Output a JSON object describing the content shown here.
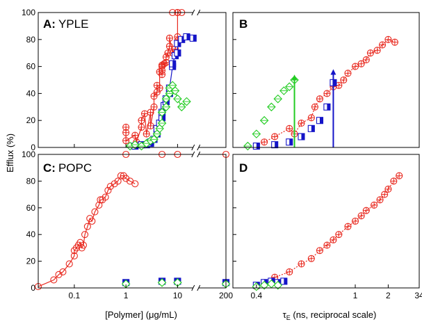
{
  "figure": {
    "y_axis_title": "Efflux (%)",
    "x_axis_title_left": "[Polymer] (μg/mL)",
    "x_axis_title_right_main": "τ",
    "x_axis_title_right_sub": "E",
    "x_axis_title_right_rest": " (ns, reciprocal scale)"
  },
  "panels": {
    "A": {
      "letter": "A:",
      "name": "YPLE"
    },
    "B": {
      "letter": "B",
      "name": ""
    },
    "C": {
      "letter": "C:",
      "name": "POPC"
    },
    "D": {
      "letter": "D",
      "name": ""
    }
  },
  "colors": {
    "red": "#e8281e",
    "blue": "#1414c8",
    "green": "#22cc22",
    "axis": "#000000"
  },
  "chart_data": [
    {
      "panel": "A",
      "type": "scatter",
      "xscale": "log",
      "xlim": [
        0.02,
        200
      ],
      "ylim": [
        0,
        100
      ],
      "xticks": [
        0.1,
        1,
        10,
        200
      ],
      "yticks": [
        0,
        20,
        40,
        60,
        80,
        100
      ],
      "axis_break_x": 20,
      "series": [
        {
          "color": "red",
          "marker": "circle-cross",
          "fit": "sigmoid",
          "x": [
            1,
            1,
            1,
            1.5,
            1.6,
            2,
            2,
            2.3,
            2.5,
            3,
            3,
            3.5,
            3.5,
            4,
            4,
            4.5,
            4.5,
            5,
            5,
            5,
            5,
            5.5,
            6,
            6,
            6.5,
            7,
            7,
            8,
            9,
            10,
            10,
            10
          ],
          "y": [
            11,
            15,
            5,
            9,
            4,
            15,
            20,
            25,
            10,
            26,
            16,
            30,
            38,
            41,
            46,
            44,
            56,
            54,
            57,
            60,
            61,
            62,
            63,
            67,
            70,
            75,
            81,
            70,
            73,
            79,
            82,
            100
          ]
        },
        {
          "color": "blue",
          "marker": "square-half",
          "fit": "sigmoid",
          "x": [
            1.5,
            2,
            2.5,
            3,
            3,
            3.5,
            4,
            4,
            4.5,
            5,
            5,
            5.5,
            6,
            6,
            7,
            7,
            8,
            8,
            9,
            10,
            10,
            12,
            15,
            20
          ],
          "y": [
            1,
            2,
            2,
            3,
            4,
            6,
            10,
            14,
            18,
            22,
            26,
            31,
            34,
            36,
            40,
            44,
            60,
            62,
            68,
            70,
            77,
            80,
            82,
            81
          ]
        },
        {
          "color": "green",
          "marker": "diamond-cross",
          "fit": "sigmoid",
          "x": [
            1.2,
            1.5,
            2,
            2.5,
            3,
            3.5,
            4,
            4.5,
            5,
            5,
            6,
            6,
            7,
            7,
            8,
            9,
            10,
            12,
            15
          ],
          "y": [
            1,
            2,
            1,
            3,
            5,
            6,
            10,
            14,
            18,
            26,
            30,
            36,
            40,
            44,
            46,
            42,
            36,
            30,
            34
          ]
        }
      ],
      "top_points": {
        "color": "red",
        "x": [
          8,
          10,
          12
        ],
        "y": [
          100,
          100,
          100
        ]
      }
    },
    {
      "panel": "B",
      "type": "scatter",
      "xscale": "reciprocal",
      "xlim": [
        0.35,
        34
      ],
      "ylim": [
        0,
        100
      ],
      "yticks": [
        0,
        20,
        40,
        60,
        80,
        100
      ],
      "series": [
        {
          "color": "red",
          "marker": "circle-cross",
          "fit": "dotted line",
          "x": [
            0.4,
            0.42,
            0.45,
            0.5,
            0.52,
            0.55,
            0.6,
            0.62,
            0.65,
            0.7,
            0.75,
            0.8,
            0.85,
            0.9,
            1.0,
            1.1,
            1.2,
            1.3,
            1.5,
            1.7,
            2.0,
            2.5
          ],
          "y": [
            1,
            4,
            8,
            14,
            10,
            18,
            22,
            30,
            36,
            40,
            45,
            46,
            50,
            55,
            60,
            62,
            65,
            70,
            72,
            76,
            80,
            78
          ]
        },
        {
          "color": "blue",
          "marker": "square-half",
          "arrow_to": 58,
          "x": [
            0.4,
            0.45,
            0.5,
            0.55,
            0.6,
            0.65,
            0.7,
            0.75
          ],
          "y": [
            1,
            2,
            4,
            8,
            14,
            20,
            30,
            48
          ]
        },
        {
          "color": "green",
          "marker": "diamond-cross",
          "arrow_to": 54,
          "x": [
            0.38,
            0.4,
            0.42,
            0.44,
            0.46,
            0.48,
            0.5,
            0.52
          ],
          "y": [
            1,
            10,
            20,
            30,
            36,
            42,
            45,
            50
          ]
        }
      ]
    },
    {
      "panel": "C",
      "type": "scatter",
      "xscale": "log",
      "xlim": [
        0.02,
        200
      ],
      "ylim": [
        0,
        100
      ],
      "xticks": [
        0.1,
        1,
        10,
        200
      ],
      "xtick_labels": [
        "0.1",
        "1",
        "10",
        "200"
      ],
      "yticks": [
        0,
        20,
        40,
        60,
        80,
        100
      ],
      "axis_break_x": 20,
      "series": [
        {
          "color": "red",
          "marker": "circle",
          "fit": "sigmoid",
          "x": [
            0.02,
            0.04,
            0.05,
            0.06,
            0.08,
            0.1,
            0.1,
            0.11,
            0.12,
            0.13,
            0.14,
            0.15,
            0.16,
            0.18,
            0.2,
            0.22,
            0.25,
            0.3,
            0.32,
            0.35,
            0.4,
            0.45,
            0.5,
            0.6,
            0.7,
            0.8,
            0.9,
            1.0,
            1.2,
            1.5
          ],
          "y": [
            1,
            6,
            10,
            12,
            18,
            24,
            28,
            30,
            32,
            34,
            30,
            32,
            40,
            46,
            52,
            50,
            57,
            62,
            66,
            66,
            68,
            73,
            76,
            78,
            80,
            84,
            84,
            82,
            80,
            78
          ]
        },
        {
          "color": "blue",
          "marker": "square-filled",
          "x": [
            1,
            5,
            10,
            200
          ],
          "y": [
            4,
            5,
            5,
            4
          ]
        },
        {
          "color": "green",
          "marker": "diamond",
          "x": [
            1,
            5,
            10,
            200
          ],
          "y": [
            3,
            4,
            4,
            3
          ]
        }
      ],
      "top_points": {
        "color": "red",
        "x": [
          1,
          5,
          10,
          200
        ],
        "y": [
          100,
          100,
          100,
          100
        ]
      }
    },
    {
      "panel": "D",
      "type": "scatter",
      "xscale": "reciprocal",
      "xlim": [
        0.35,
        34
      ],
      "ylim": [
        0,
        100
      ],
      "xticks": [
        0.4,
        1,
        2,
        34
      ],
      "xtick_labels": [
        "0.4",
        "1",
        "2",
        "34"
      ],
      "yticks": [
        0,
        20,
        40,
        60,
        80,
        100
      ],
      "series": [
        {
          "color": "red",
          "marker": "circle-cross",
          "fit": "dotted line",
          "x": [
            0.4,
            0.42,
            0.45,
            0.5,
            0.55,
            0.6,
            0.65,
            0.7,
            0.75,
            0.8,
            0.9,
            1.0,
            1.1,
            1.2,
            1.4,
            1.6,
            1.8,
            2.0,
            2.4,
            3.0
          ],
          "y": [
            1,
            4,
            8,
            12,
            18,
            22,
            28,
            32,
            36,
            40,
            46,
            50,
            54,
            58,
            62,
            66,
            70,
            74,
            80,
            84
          ]
        },
        {
          "color": "blue",
          "marker": "square-half",
          "x": [
            0.4,
            0.42,
            0.44,
            0.46,
            0.48
          ],
          "y": [
            2,
            4,
            5,
            4,
            5
          ]
        },
        {
          "color": "green",
          "marker": "diamond",
          "x": [
            0.4,
            0.42,
            0.44,
            0.46
          ],
          "y": [
            1,
            2,
            3,
            2
          ]
        }
      ]
    }
  ]
}
